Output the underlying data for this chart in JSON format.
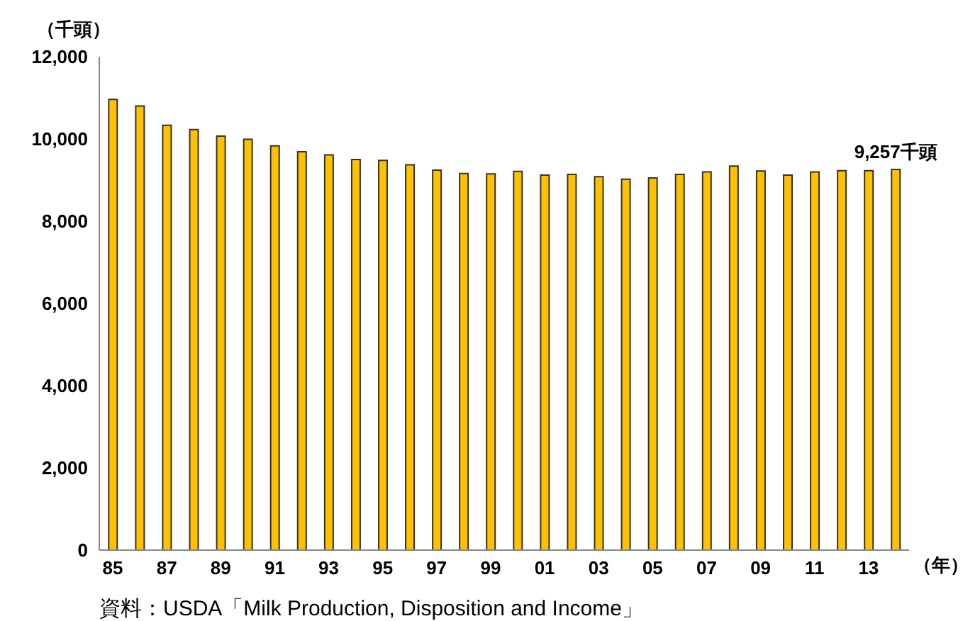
{
  "chart_data": {
    "type": "bar",
    "ylabel": "（千頭）",
    "xlabel": "（年）",
    "categories": [
      "85",
      null,
      "87",
      null,
      "89",
      null,
      "91",
      null,
      "93",
      null,
      "95",
      null,
      "97",
      null,
      "99",
      null,
      "01",
      null,
      "03",
      null,
      "05",
      null,
      "07",
      null,
      "09",
      null,
      "11",
      null,
      "13",
      null
    ],
    "values": [
      10960,
      10800,
      10330,
      10230,
      10070,
      9990,
      9830,
      9690,
      9610,
      9500,
      9480,
      9370,
      9240,
      9160,
      9150,
      9210,
      9120,
      9140,
      9080,
      9020,
      9050,
      9140,
      9200,
      9340,
      9220,
      9120,
      9200,
      9230,
      9230,
      9257
    ],
    "value_labels": [
      null,
      null,
      null,
      null,
      null,
      null,
      null,
      null,
      null,
      null,
      null,
      null,
      null,
      null,
      null,
      null,
      null,
      null,
      null,
      null,
      null,
      null,
      null,
      null,
      null,
      null,
      null,
      null,
      null,
      "9,257千頭"
    ],
    "color": "#ffc000",
    "ylim": [
      0,
      12000
    ],
    "yticks": [
      {
        "value": 0,
        "label": "0"
      },
      {
        "value": 2000,
        "label": "2,000"
      },
      {
        "value": 4000,
        "label": "4,000"
      },
      {
        "value": 6000,
        "label": "6,000"
      },
      {
        "value": 8000,
        "label": "8,000"
      },
      {
        "value": 10000,
        "label": "10,000"
      },
      {
        "value": 12000,
        "label": "12,000"
      }
    ],
    "grid": false,
    "legend": false,
    "annotations": [
      "資料：USDA「Milk Production, Disposition and Income」"
    ]
  }
}
